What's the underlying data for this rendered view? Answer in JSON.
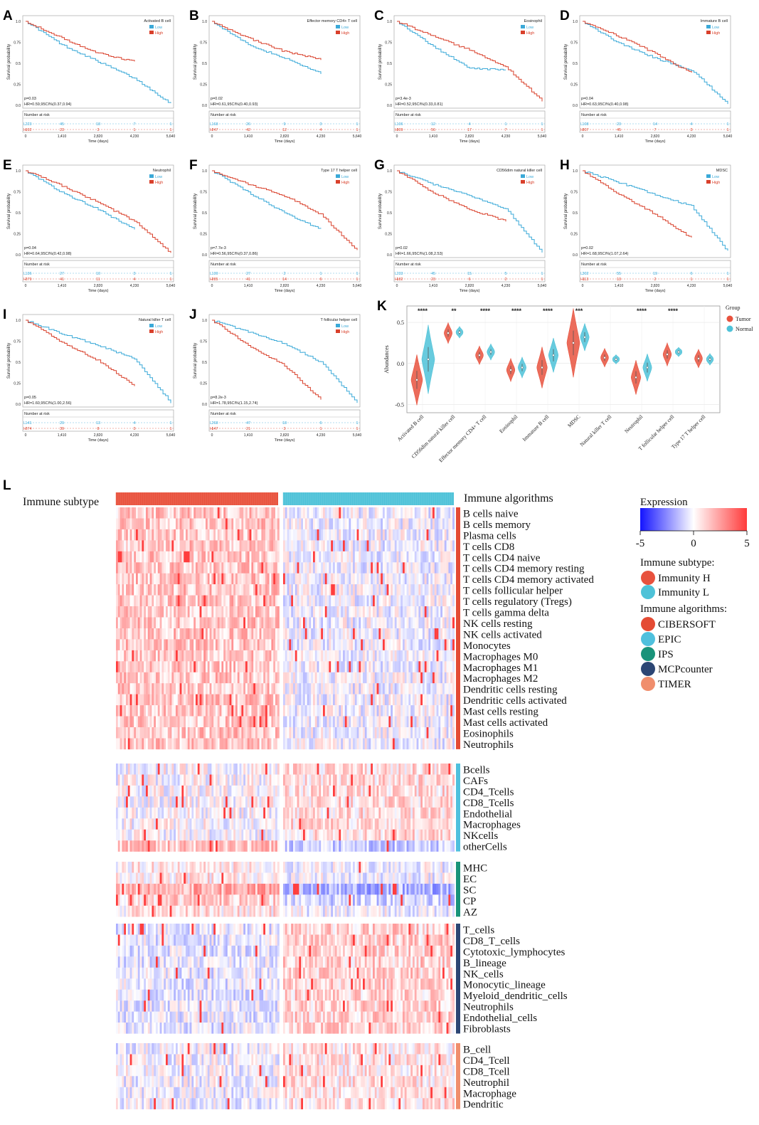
{
  "figure": {
    "panel_letters": [
      "A",
      "B",
      "C",
      "D",
      "E",
      "F",
      "G",
      "H",
      "I",
      "J",
      "K",
      "L"
    ]
  },
  "colors": {
    "low": "#3aa9d8",
    "high": "#d9402b",
    "tumor": "#e8523e",
    "normal": "#4ec2d8",
    "cibersoft": "#e44b34",
    "epic": "#4fc0dd",
    "ips": "#19937a",
    "mcpcounter": "#2c4674",
    "timer": "#f08e6d",
    "expr_low": "#1414ff",
    "expr_mid": "#ffffff",
    "expr_high": "#ff2020"
  },
  "km_common": {
    "ylabel": "Survival probability",
    "xlabel": "Time (days)",
    "xticks": [
      "0",
      "1,410",
      "2,820",
      "4,230",
      "5,640"
    ],
    "yticks": [
      "0.0",
      "0.25",
      "0.5",
      "0.75",
      "1.0"
    ],
    "legend_low": "Low",
    "legend_high": "High",
    "risk_title": "Number at risk",
    "risk_row_low": "L",
    "risk_row_high": "H"
  },
  "chart_data": [
    {
      "type": "line",
      "panel": "A",
      "title": "Activated B cell",
      "p": "p=0.03",
      "hr": "HR=0.59,95CI%(0.37,0.94)",
      "x": [
        0,
        1410,
        2820,
        4230,
        5640
      ],
      "series": [
        {
          "name": "Low",
          "values": [
            1.0,
            0.72,
            0.52,
            0.32,
            0.02
          ]
        },
        {
          "name": "High",
          "values": [
            1.0,
            0.8,
            0.62,
            0.52,
            null
          ]
        }
      ],
      "risk_low": [
        "223",
        "45",
        "18",
        "7",
        "1"
      ],
      "risk_high": [
        "192",
        "23",
        "3",
        "1",
        "1"
      ]
    },
    {
      "type": "line",
      "panel": "B",
      "title": "Effector memory CD4+ T cell",
      "p": "p=0.02",
      "hr": "HR=0.61,95CI%(0.40,0.93)",
      "x": [
        0,
        1410,
        2820,
        4230,
        5640
      ],
      "series": [
        {
          "name": "Low",
          "values": [
            1.0,
            0.72,
            0.56,
            0.38,
            null
          ]
        },
        {
          "name": "High",
          "values": [
            1.0,
            0.8,
            0.64,
            0.55,
            null
          ]
        }
      ],
      "risk_low": [
        "168",
        "26",
        "9",
        "3",
        "1"
      ],
      "risk_high": [
        "247",
        "42",
        "12",
        "4",
        "1"
      ]
    },
    {
      "type": "line",
      "panel": "C",
      "title": "Eosinophil",
      "p": "p=3.4e-3",
      "hr": "HR=0.52,95CI%(0.33,0.81)",
      "x": [
        0,
        1410,
        2820,
        4230,
        5640
      ],
      "series": [
        {
          "name": "Low",
          "values": [
            1.0,
            0.7,
            0.44,
            0.42,
            null
          ]
        },
        {
          "name": "High",
          "values": [
            1.0,
            0.82,
            0.66,
            0.46,
            0.05
          ]
        }
      ],
      "risk_low": [
        "106",
        "12",
        "4",
        "1",
        "1"
      ],
      "risk_high": [
        "309",
        "56",
        "17",
        "7",
        "1"
      ]
    },
    {
      "type": "line",
      "panel": "D",
      "title": "Immature B cell",
      "p": "p=0.04",
      "hr": "HR=0.63,95CI%(0.40,0.98)",
      "x": [
        0,
        1410,
        2820,
        4230,
        5640
      ],
      "series": [
        {
          "name": "Low",
          "values": [
            1.0,
            0.74,
            0.56,
            0.42,
            0.02
          ]
        },
        {
          "name": "High",
          "values": [
            1.0,
            0.82,
            0.62,
            0.38,
            null
          ]
        }
      ],
      "risk_low": [
        "108",
        "23",
        "14",
        "4",
        "1"
      ],
      "risk_high": [
        "307",
        "45",
        "7",
        "3",
        "1"
      ]
    },
    {
      "type": "line",
      "panel": "E",
      "title": "Neutrophil",
      "p": "p=0.04",
      "hr": "HR=0.64,95CI%(0.42,0.98)",
      "x": [
        0,
        1410,
        2820,
        4230,
        5640
      ],
      "series": [
        {
          "name": "Low",
          "values": [
            1.0,
            0.74,
            0.54,
            0.3,
            null
          ]
        },
        {
          "name": "High",
          "values": [
            1.0,
            0.82,
            0.62,
            0.4,
            0.02
          ]
        }
      ],
      "risk_low": [
        "136",
        "27",
        "10",
        "3",
        "1"
      ],
      "risk_high": [
        "279",
        "41",
        "11",
        "4",
        "1"
      ]
    },
    {
      "type": "line",
      "panel": "F",
      "title": "Type 17 T helper cell",
      "p": "p=7.7e-3",
      "hr": "HR=0.56,95CI%(0.37,0.86)",
      "x": [
        0,
        1410,
        2820,
        4230,
        5640
      ],
      "series": [
        {
          "name": "Low",
          "values": [
            1.0,
            0.74,
            0.5,
            0.3,
            null
          ]
        },
        {
          "name": "High",
          "values": [
            1.0,
            0.84,
            0.7,
            0.48,
            0.05
          ]
        }
      ],
      "risk_low": [
        "130",
        "27",
        "2",
        "1",
        "1"
      ],
      "risk_high": [
        "285",
        "41",
        "14",
        "6",
        "1"
      ]
    },
    {
      "type": "line",
      "panel": "G",
      "title": "CD56dim natural killer cell",
      "p": "p=0.02",
      "hr": "HR=1.66,95CI%(1.08,2.53)",
      "x": [
        0,
        1410,
        2820,
        4230,
        5640
      ],
      "series": [
        {
          "name": "Low",
          "values": [
            1.0,
            0.84,
            0.7,
            0.55,
            0.02
          ]
        },
        {
          "name": "High",
          "values": [
            1.0,
            0.74,
            0.54,
            0.4,
            null
          ]
        }
      ],
      "risk_low": [
        "233",
        "45",
        "15",
        "5",
        "1"
      ],
      "risk_high": [
        "182",
        "23",
        "6",
        "2",
        "1"
      ]
    },
    {
      "type": "line",
      "panel": "H",
      "title": "MDSC",
      "p": "p=0.02",
      "hr": "HR=1.68,95CI%(1.07,2.64)",
      "x": [
        0,
        1410,
        2820,
        4230,
        5640
      ],
      "series": [
        {
          "name": "Low",
          "values": [
            1.0,
            0.86,
            0.72,
            0.58,
            0.04
          ]
        },
        {
          "name": "High",
          "values": [
            1.0,
            0.72,
            0.48,
            0.2,
            null
          ]
        }
      ],
      "risk_low": [
        "302",
        "55",
        "19",
        "6",
        "1"
      ],
      "risk_high": [
        "113",
        "13",
        "2",
        "1",
        "1"
      ]
    },
    {
      "type": "line",
      "panel": "I",
      "title": "Natural killer T cell",
      "p": "p=0.05",
      "hr": "HR=1.60,95CI%(1.00,2.56)",
      "x": [
        0,
        1410,
        2820,
        4230,
        5640
      ],
      "series": [
        {
          "name": "Low",
          "values": [
            1.0,
            0.84,
            0.7,
            0.54,
            0.02
          ]
        },
        {
          "name": "High",
          "values": [
            1.0,
            0.74,
            0.52,
            0.22,
            null
          ]
        }
      ],
      "risk_low": [
        "141",
        "29",
        "13",
        "4",
        "1"
      ],
      "risk_high": [
        "274",
        "39",
        "8",
        "3",
        "1"
      ]
    },
    {
      "type": "line",
      "panel": "J",
      "title": "T follicular helper cell",
      "p": "p=8.2e-3",
      "hr": "HR=1.78,95CI%(1.15,2.74)",
      "x": [
        0,
        1410,
        2820,
        4230,
        5640
      ],
      "series": [
        {
          "name": "Low",
          "values": [
            1.0,
            0.86,
            0.72,
            0.5,
            0.02
          ]
        },
        {
          "name": "High",
          "values": [
            1.0,
            0.7,
            0.46,
            0.05,
            null
          ]
        }
      ],
      "risk_low": [
        "268",
        "47",
        "18",
        "6",
        "1"
      ],
      "risk_high": [
        "147",
        "21",
        "3",
        "1",
        "1"
      ]
    },
    {
      "type": "violin",
      "panel": "K",
      "ylabel": "Abundances",
      "ylim": [
        -0.6,
        0.7
      ],
      "yticks": [
        -0.5,
        0.0,
        0.5
      ],
      "legend_title": "Group",
      "legend_items": [
        "Tumor",
        "Normal"
      ],
      "categories": [
        "Activated B cell",
        "CD56dim natural killer cell",
        "Effector memory CD4+ T cell",
        "Eosinophil",
        "Immature B cell",
        "MDSC",
        "Natural killer T cell",
        "Neutrophil",
        "T follicular helper cell",
        "Type 17 T helper cell"
      ],
      "significance": [
        "****",
        "**",
        "****",
        "****",
        "****",
        "***",
        "",
        "****",
        "****",
        ""
      ],
      "series": [
        {
          "name": "Tumor",
          "median": [
            -0.2,
            0.37,
            0.1,
            -0.08,
            -0.05,
            0.25,
            0.07,
            -0.17,
            0.11,
            0.06
          ],
          "spread": [
            0.22,
            0.09,
            0.08,
            0.1,
            0.18,
            0.3,
            0.08,
            0.15,
            0.1,
            0.08
          ]
        },
        {
          "name": "Normal",
          "median": [
            0.05,
            0.38,
            0.14,
            -0.05,
            0.1,
            0.32,
            0.05,
            -0.05,
            0.14,
            0.05
          ],
          "spread": [
            0.3,
            0.05,
            0.07,
            0.09,
            0.15,
            0.12,
            0.04,
            0.12,
            0.04,
            0.05
          ]
        }
      ]
    },
    {
      "type": "heatmap",
      "panel": "L",
      "row_header": "Immune subtype",
      "col_groups_label": "Immune algorithms",
      "col_groups": [
        "Immunity H",
        "Immunity L"
      ],
      "legend_title": "Expression",
      "scale": [
        -5,
        0,
        5
      ],
      "scale_labels": [
        "-5",
        "0",
        "5"
      ],
      "subtype_title": "Immune subtype:",
      "algorithms_title": "Immune algorithms:",
      "algorithms": [
        "CIBERSOFT",
        "EPIC",
        "IPS",
        "MCPcounter",
        "TIMER"
      ],
      "blocks": [
        {
          "algorithm": "CIBERSOFT",
          "rows": [
            "B cells naive",
            "B cells memory",
            "Plasma cells",
            "T cells CD8",
            "T cells CD4 naive",
            "T cells CD4 memory resting",
            "T cells CD4 memory activated",
            "T cells follicular helper",
            "T cells regulatory (Tregs)",
            "T cells gamma delta",
            "NK cells resting",
            "NK cells activated",
            "Monocytes",
            "Macrophages M0",
            "Macrophages M1",
            "Macrophages M2",
            "Dendritic cells resting",
            "Dendritic cells activated",
            "Mast cells resting",
            "Mast cells activated",
            "Eosinophils",
            "Neutrophils"
          ]
        },
        {
          "algorithm": "EPIC",
          "rows": [
            "Bcells",
            "CAFs",
            "CD4_Tcells",
            "CD8_Tcells",
            "Endothelial",
            "Macrophages",
            "NKcells",
            "otherCells"
          ]
        },
        {
          "algorithm": "IPS",
          "rows": [
            "MHC",
            "EC",
            "SC",
            "CP",
            "AZ"
          ]
        },
        {
          "algorithm": "MCPcounter",
          "rows": [
            "T_cells",
            "CD8_T_cells",
            "Cytotoxic_lymphocytes",
            "B_lineage",
            "NK_cells",
            "Monocytic_lineage",
            "Myeloid_dendritic_cells",
            "Neutrophils",
            "Endothelial_cells",
            "Fibroblasts"
          ]
        },
        {
          "algorithm": "TIMER",
          "rows": [
            "B_cell",
            "CD4_Tcell",
            "CD8_Tcell",
            "Neutrophil",
            "Macrophage",
            "Dendritic"
          ]
        }
      ]
    }
  ]
}
